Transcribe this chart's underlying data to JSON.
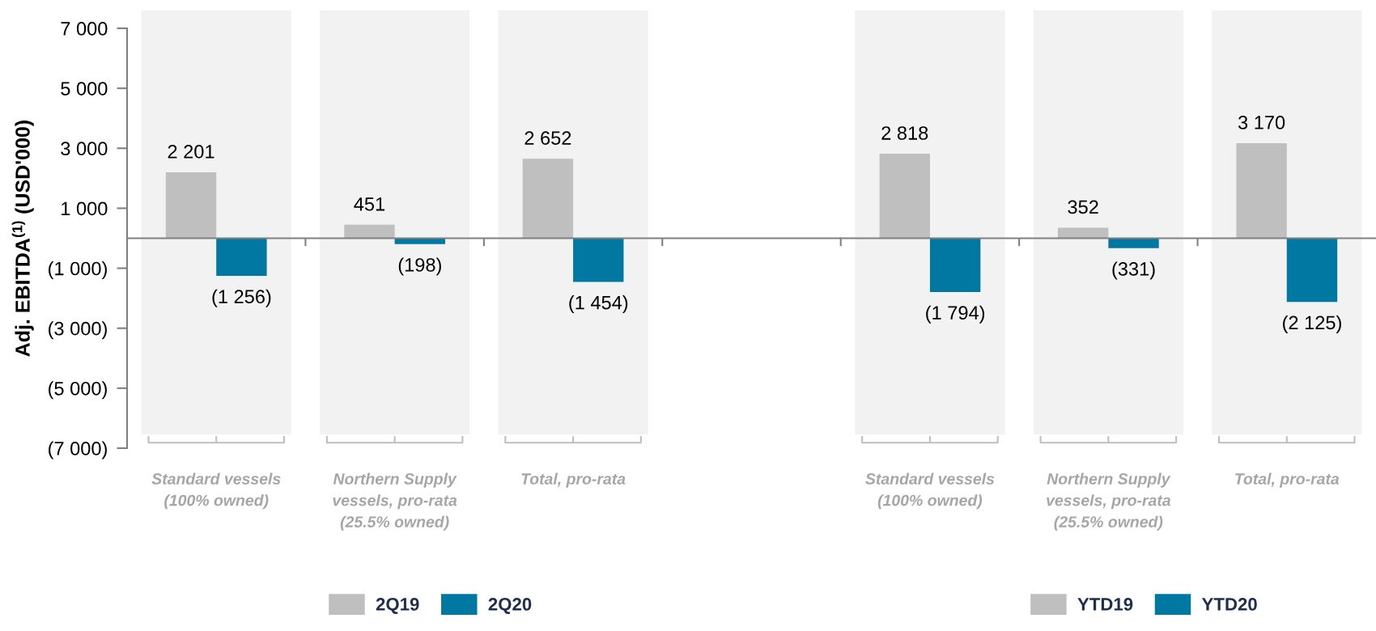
{
  "chart_data": [
    {
      "type": "bar",
      "ylabel": "Adj. EBITDA$^{(1)}$ (USD'000)",
      "categories": [
        "Standard vessels (100% owned)",
        "Northern Supply vessels, pro-rata (25.5% owned)",
        "Total, pro-rata",
        null
      ],
      "series": [
        {
          "name": "2Q19",
          "color": "#bfbfbf",
          "values": [
            2201,
            451,
            2652,
            null
          ],
          "value_labels": [
            "2 201",
            "451",
            "2 652",
            null
          ]
        },
        {
          "name": "2Q20",
          "color": "#0078a2",
          "values": [
            -1256,
            -198,
            -1454,
            null
          ],
          "value_labels": [
            "(1 256)",
            "(198)",
            "(1 454)",
            null
          ]
        }
      ],
      "ylim": [
        -7000,
        7000
      ],
      "yticks": [
        {
          "value": -7000,
          "label": "(7 000)"
        },
        {
          "value": -5000,
          "label": "(5 000)"
        },
        {
          "value": -3000,
          "label": "(3 000)"
        },
        {
          "value": -1000,
          "label": "(1 000)"
        },
        {
          "value": 1000,
          "label": "1 000"
        },
        {
          "value": 3000,
          "label": "3 000"
        },
        {
          "value": 5000,
          "label": "5 000"
        },
        {
          "value": 7000,
          "label": "7 000"
        }
      ],
      "bands": [
        {
          "axis": "x",
          "from": "Standard vessels (100% owned)",
          "to": "Standard vessels (100% owned)",
          "color": "#f2f2f2"
        },
        {
          "axis": "x",
          "from": "Northern Supply vessels, pro-rata (25.5% owned)",
          "to": "Northern Supply vessels, pro-rata (25.5% owned)",
          "color": "#f2f2f2"
        },
        {
          "axis": "x",
          "from": "Total, pro-rata",
          "to": "Total, pro-rata",
          "color": "#f2f2f2"
        }
      ],
      "legend": "bottom"
    },
    {
      "type": "bar",
      "categories": [
        "Standard vessels (100% owned)",
        "Northern Supply vessels, pro-rata (25.5% owned)",
        "Total, pro-rata"
      ],
      "series": [
        {
          "name": "YTD19",
          "color": "#bfbfbf",
          "values": [
            2818,
            352,
            3170
          ],
          "value_labels": [
            "2 818",
            "352",
            "3 170"
          ]
        },
        {
          "name": "YTD20",
          "color": "#0078a2",
          "values": [
            -1794,
            -331,
            -2125
          ],
          "value_labels": [
            "(1 794)",
            "(331)",
            "(2 125)"
          ]
        }
      ],
      "ylim": [
        -7000,
        7000
      ],
      "tick_labels": "x",
      "bands": [
        {
          "axis": "x",
          "from": "Standard vessels (100% owned)",
          "to": "Standard vessels (100% owned)",
          "color": "#f2f2f2"
        },
        {
          "axis": "x",
          "from": "Northern Supply vessels, pro-rata (25.5% owned)",
          "to": "Northern Supply vessels, pro-rata (25.5% owned)",
          "color": "#f2f2f2"
        },
        {
          "axis": "x",
          "from": "Total, pro-rata",
          "to": "Total, pro-rata",
          "color": "#f2f2f2"
        }
      ],
      "legend": "bottom"
    }
  ]
}
